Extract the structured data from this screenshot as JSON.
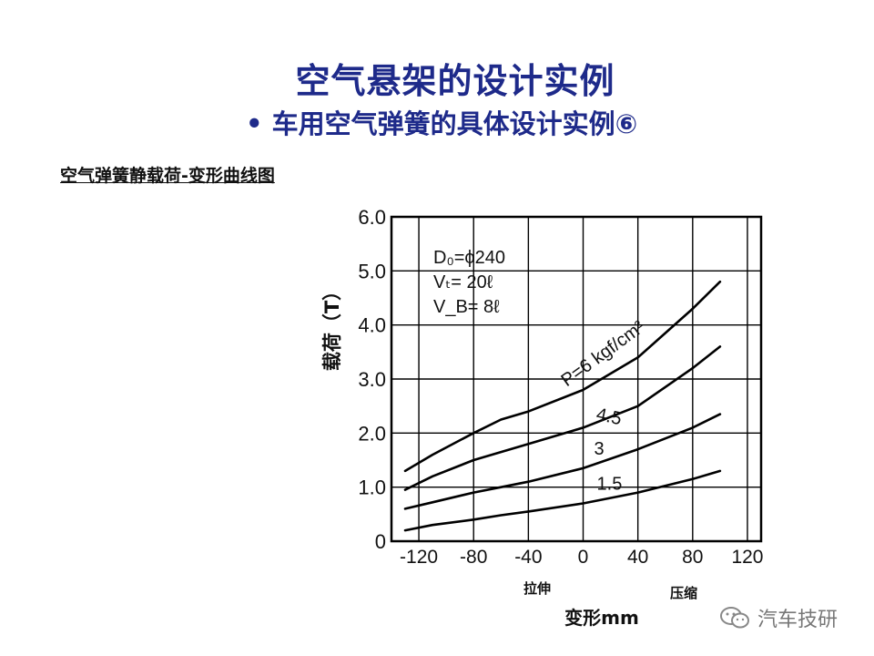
{
  "title": "空气悬架的设计实例",
  "subtitle": "• 车用空气弹簧的具体设计实例⑥",
  "section_heading": "空气弹簧静载荷-变形曲线图",
  "watermark": {
    "text": "汽车技研",
    "icon": "wechat-icon"
  },
  "params": [
    "D₀=ϕ240",
    "Vₜ= 20ℓ",
    "V_B= 8ℓ"
  ],
  "direction_labels": {
    "tension": "拉伸",
    "compression": "压缩"
  },
  "chart_data": {
    "type": "line",
    "xlabel": "变形mm",
    "ylabel": "载荷（T）",
    "xlim": [
      -140,
      130
    ],
    "ylim": [
      0,
      6.0
    ],
    "x_ticks": [
      -120,
      -80,
      -40,
      0,
      40,
      80,
      120
    ],
    "x_tick_labels": [
      "-120",
      "-80",
      "-40",
      "0",
      "40",
      "80",
      "120"
    ],
    "y_ticks": [
      0,
      1,
      2,
      3,
      4,
      5,
      6
    ],
    "y_tick_labels": [
      "0",
      "1.0",
      "2.0",
      "3.0",
      "4.0",
      "5.0",
      "6.0"
    ],
    "grid": true,
    "series": [
      {
        "name": "P=6 kgf/cm²",
        "label_value": 6,
        "x": [
          -130,
          -110,
          -80,
          -60,
          -40,
          0,
          40,
          80,
          100
        ],
        "y": [
          1.3,
          1.6,
          2.0,
          2.25,
          2.4,
          2.8,
          3.4,
          4.3,
          4.8
        ]
      },
      {
        "name": "4.5",
        "label_value": 4.5,
        "x": [
          -130,
          -110,
          -80,
          -60,
          -40,
          0,
          40,
          80,
          100
        ],
        "y": [
          0.95,
          1.2,
          1.5,
          1.65,
          1.8,
          2.1,
          2.5,
          3.2,
          3.6
        ]
      },
      {
        "name": "3",
        "label_value": 3,
        "x": [
          -130,
          -110,
          -80,
          -60,
          -40,
          0,
          40,
          80,
          100
        ],
        "y": [
          0.6,
          0.72,
          0.9,
          1.0,
          1.1,
          1.35,
          1.7,
          2.1,
          2.35
        ]
      },
      {
        "name": "1.5",
        "label_value": 1.5,
        "x": [
          -130,
          -110,
          -80,
          -60,
          -40,
          0,
          40,
          80,
          100
        ],
        "y": [
          0.2,
          0.3,
          0.4,
          0.48,
          0.55,
          0.7,
          0.9,
          1.15,
          1.3
        ]
      }
    ]
  }
}
